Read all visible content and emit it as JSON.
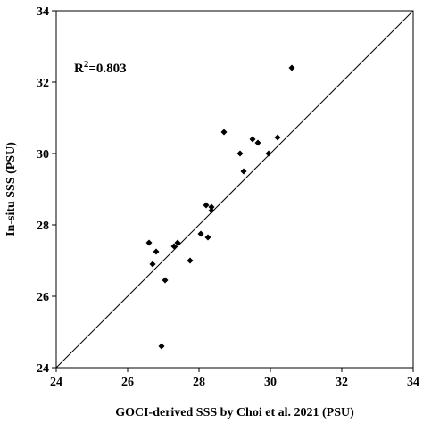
{
  "chart_data": {
    "type": "scatter",
    "x_label": "GOCI-derived SSS by Choi et al. 2021 (PSU)",
    "y_label": "In-situ SSS (PSU)",
    "annotation": {
      "base": "R",
      "sup": "2",
      "rest": "=0.803"
    },
    "color": "#000000",
    "x": [
      30.6,
      28.7,
      29.5,
      29.65,
      30.2,
      29.15,
      29.95,
      29.25,
      28.2,
      28.35,
      28.35,
      28.05,
      28.25,
      27.75,
      27.4,
      27.3,
      26.6,
      26.8,
      26.7,
      27.05,
      26.95
    ],
    "values": [
      32.4,
      30.6,
      30.4,
      30.3,
      30.45,
      30.0,
      30.0,
      29.5,
      28.55,
      28.5,
      28.4,
      27.75,
      27.65,
      27.0,
      27.5,
      27.4,
      27.5,
      27.25,
      26.9,
      26.45,
      24.6
    ],
    "xlim": [
      24,
      34
    ],
    "ylim": [
      24,
      34
    ],
    "xticks": [
      24,
      26,
      28,
      30,
      32,
      34
    ],
    "yticks": [
      24,
      26,
      28,
      30,
      32,
      34
    ]
  }
}
